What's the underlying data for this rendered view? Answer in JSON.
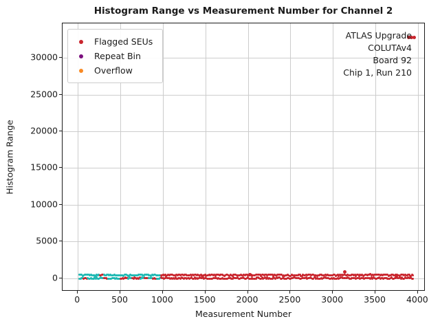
{
  "chart_data": {
    "type": "scatter",
    "title": "Histogram Range vs Measurement Number for Channel 2",
    "xlabel": "Measurement Number",
    "ylabel": "Histogram Range",
    "xlim": [
      -180,
      4090
    ],
    "ylim": [
      -1800,
      34700
    ],
    "xticks": [
      0,
      500,
      1000,
      1500,
      2000,
      2500,
      3000,
      3500,
      4000
    ],
    "yticks": [
      0,
      5000,
      10000,
      15000,
      20000,
      25000,
      30000
    ],
    "grid": true,
    "legend": {
      "position": "upper-left",
      "entries": [
        {
          "label": "Flagged SEUs",
          "color": "#c9252d"
        },
        {
          "label": "Repeat Bin",
          "color": "#7b0f7e"
        },
        {
          "label": "Overflow",
          "color": "#f98a24"
        }
      ]
    },
    "annotation": {
      "position": "upper-right",
      "lines": [
        "ATLAS Upgrade",
        "COLUTAv4",
        "Board 92",
        "Chip 1, Run 210"
      ]
    },
    "series": [
      {
        "name": "dense-band-mixed-cyan-red",
        "description": "dense band of measurements near y=0; cyan and red interleaved below measurement ~1000, red only above",
        "cyan_color": "#1db8b2",
        "red_color": "#c9252d",
        "band": {
          "x_start": 20,
          "x_end": 3950,
          "x_step": 12,
          "cyan_until_x": 1000,
          "cyan_fraction": 0.6,
          "y_levels": [
            0,
            430
          ],
          "y_jitter": 110,
          "marker_px": 3
        }
      },
      {
        "name": "flagged-seu-outliers",
        "color": "#c9252d",
        "marker_px": 5,
        "points": [
          {
            "x": 3890,
            "y": 32768
          },
          {
            "x": 3925,
            "y": 32768
          },
          {
            "x": 3960,
            "y": 32768
          },
          {
            "x": 3140,
            "y": 900
          },
          {
            "x": 3750,
            "y": 260
          },
          {
            "x": 2020,
            "y": 520
          }
        ]
      }
    ]
  }
}
